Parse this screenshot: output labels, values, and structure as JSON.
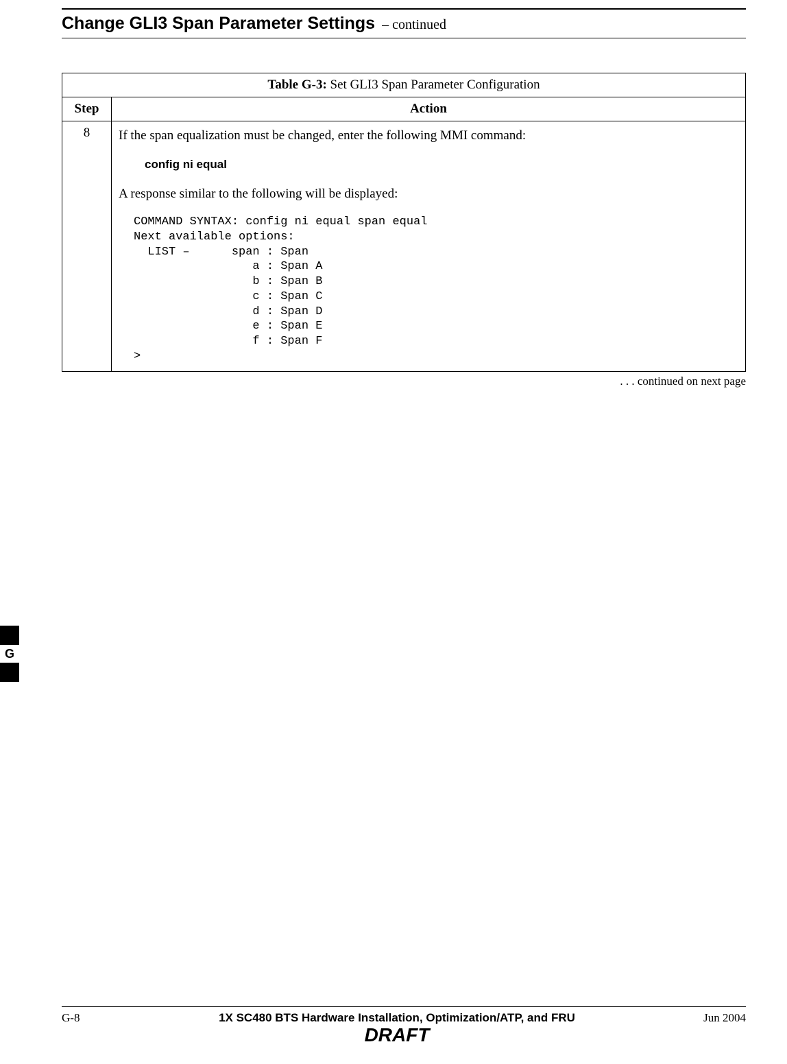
{
  "header": {
    "title": "Change GLI3 Span Parameter Settings",
    "continued": " – continued"
  },
  "table": {
    "title_bold": "Table G-3:",
    "title_rest": " Set GLI3 Span Parameter Configuration",
    "col_step": "Step",
    "col_action": "Action",
    "rows": [
      {
        "step": "8",
        "intro": "If the span equalization must be changed, enter the following MMI command:",
        "command": "config  ni  equal",
        "response_intro": "A response similar to the following will be displayed:",
        "response_block": "COMMAND SYNTAX: config ni equal span equal\nNext available options:\n  LIST –      span : Span\n                 a : Span A\n                 b : Span B\n                 c : Span C\n                 d : Span D\n                 e : Span E\n                 f : Span F\n>"
      }
    ],
    "continued_note": ". . . continued on next page"
  },
  "side_tab": {
    "letter": "G"
  },
  "footer": {
    "left": "G-8",
    "center_line1": "1X SC480 BTS Hardware Installation, Optimization/ATP, and FRU",
    "center_line2": "DRAFT",
    "right": "Jun 2004"
  }
}
